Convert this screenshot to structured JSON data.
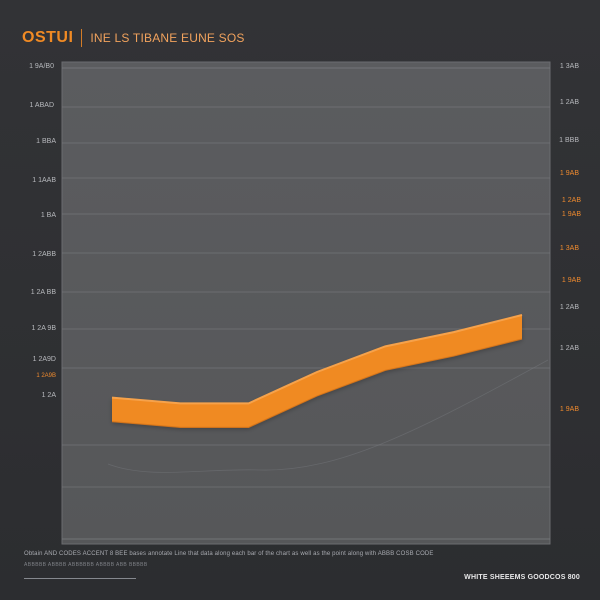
{
  "header": {
    "brand": "OSTUI",
    "title": "INE LS TIBANE EUNE SOS"
  },
  "chart_data": {
    "type": "line",
    "x": [
      0,
      1,
      2,
      3,
      4,
      5,
      6
    ],
    "series": [
      {
        "values": [
          3.55,
          3.45,
          3.45,
          4.0,
          4.45,
          4.7,
          5.0
        ],
        "color": "#f08a24"
      }
    ],
    "left_ticks": [
      "1 9A/B0",
      "1 ABAD",
      "1 BBA",
      "1 1AAB",
      "1 BA",
      "1 2ABB",
      "1 2A BB",
      "1 2A 9B",
      "1 2A9D",
      "1 2A9B",
      "1 2A"
    ],
    "right_ticks": [
      "1 3AB",
      "1 2AB",
      "1 BBB",
      "1 9AB",
      "1 2AB",
      "1 9AB",
      "1 3AB",
      "1 9AB",
      "1 2AB",
      "1 2AB",
      "1 9AB"
    ],
    "grid": true
  },
  "footer": {
    "caption": "Obtain AND CODES ACCENT 8 BEE bases annotate Line that data along each bar of the chart as well as the point along with ABBB COSB CODE",
    "small_text": "ABBBBB ABBBB ABBBBBB ABBBB ABB BBBBB",
    "right_label": "WHITE SHEEEMS GOODCOS 800"
  }
}
